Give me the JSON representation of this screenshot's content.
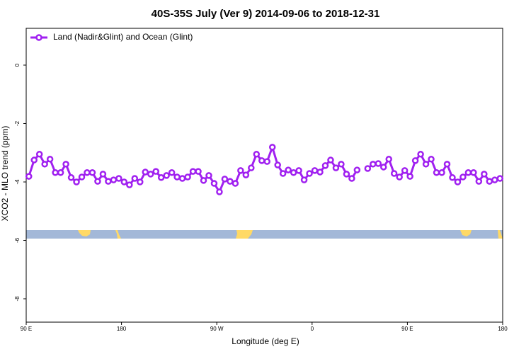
{
  "chart_data": {
    "type": "line",
    "title": "40S-35S July (Ver 9)   2014-09-06 to 2018-12-31",
    "x_label": "Longitude (deg E)",
    "y_label": "XCO2 - MLO trend (ppm)",
    "xlim": [
      90,
      540
    ],
    "ylim": [
      -8.8,
      1.26
    ],
    "xticks": [
      {
        "value": 90,
        "label": "90 E"
      },
      180,
      {
        "value": 270,
        "label": "90 W"
      },
      {
        "value": 360,
        "label": "0"
      },
      {
        "value": 450,
        "label": "90 E"
      },
      {
        "value": 540,
        "label": "180"
      }
    ],
    "yticks": [
      0,
      -2,
      -4,
      -6,
      -8
    ],
    "legend": "top-left",
    "x": [
      92.5,
      97.5,
      102.5,
      107.5,
      112.5,
      117.5,
      122.5,
      127.5,
      132.5,
      137.5,
      142.5,
      147.5,
      152.5,
      157.5,
      162.5,
      167.5,
      172.5,
      177.5,
      182.5,
      187.5,
      192.5,
      197.5,
      202.5,
      207.5,
      212.5,
      217.5,
      222.5,
      227.5,
      232.5,
      237.5,
      242.5,
      247.5,
      252.5,
      257.5,
      262.5,
      267.5,
      272.5,
      277.5,
      282.5,
      287.5,
      292.5,
      297.5,
      302.5,
      307.5,
      312.5,
      317.5,
      322.5,
      327.5,
      332.5,
      337.5,
      342.5,
      347.5,
      352.5,
      357.5,
      362.5,
      367.5,
      372.5,
      377.5,
      382.5,
      387.5,
      392.5,
      397.5,
      402.5,
      407.5,
      412.5,
      417.5,
      422.5,
      427.5,
      432.5,
      437.5,
      442.5,
      447.5,
      452.5,
      457.5,
      462.5,
      467.5,
      472.5,
      477.5,
      482.5,
      487.5,
      492.5,
      497.5,
      502.5,
      507.5,
      512.5,
      517.5,
      522.5,
      527.5,
      532.5,
      537.5
    ],
    "series": [
      {
        "name": "Land (Nadir&Glint) and Ocean (Glint)",
        "color": "#a020f0",
        "values": [
          -3.81,
          -3.25,
          -3.05,
          -3.39,
          -3.22,
          -3.68,
          -3.68,
          -3.39,
          -3.85,
          -4.0,
          -3.83,
          -3.68,
          -3.68,
          -3.98,
          -3.73,
          -3.98,
          -3.93,
          -3.88,
          -4.0,
          -4.1,
          -3.88,
          -4.0,
          -3.66,
          -3.73,
          -3.64,
          -3.85,
          -3.78,
          -3.68,
          -3.83,
          -3.88,
          -3.83,
          -3.64,
          -3.64,
          -3.95,
          -3.78,
          -4.05,
          -4.34,
          -3.9,
          -3.98,
          -4.05,
          -3.61,
          -3.76,
          -3.52,
          -3.05,
          -3.27,
          -3.3,
          -2.81,
          -3.42,
          -3.71,
          -3.59,
          -3.68,
          -3.61,
          -3.93,
          -3.71,
          -3.61,
          -3.66,
          -3.44,
          -3.25,
          -3.52,
          -3.39,
          -3.73,
          -3.88,
          -3.59,
          null,
          -3.54,
          -3.39,
          -3.37,
          -3.49,
          -3.22,
          -3.71,
          -3.83,
          -3.61,
          -3.81,
          -3.27,
          -3.05,
          -3.39,
          -3.22,
          -3.68,
          -3.68,
          -3.39,
          -3.85,
          -4.0,
          -3.83,
          -3.68,
          -3.68,
          -3.98,
          -3.73,
          -3.98,
          -3.93,
          -3.88
        ]
      }
    ]
  }
}
